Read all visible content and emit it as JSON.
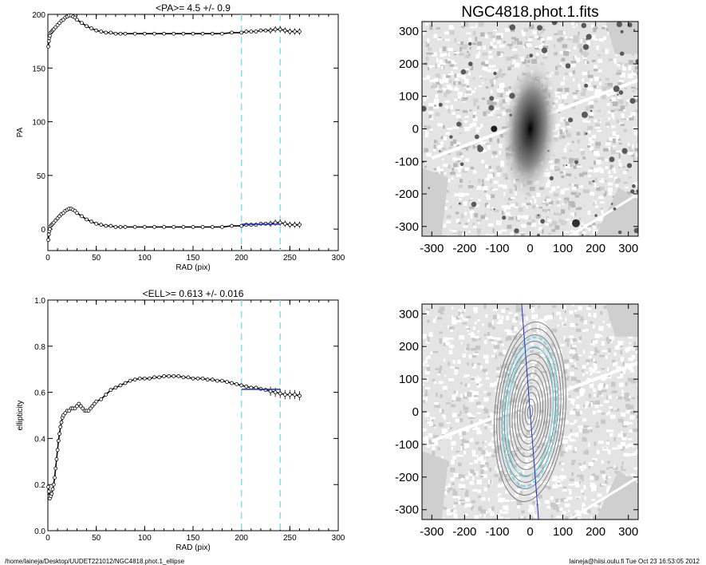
{
  "footer": {
    "path": "/home/laineja/Desktop/UUDET221012/NGC4818.phot.1_ellipse",
    "user_stamp": "laineja@hiisi.oulu.fi  Tue Oct 23 16:53:05 2012"
  },
  "colors": {
    "data_points": "#000000",
    "fit_line": "#2030c0",
    "dashed_limits": "#7fe0ea",
    "image_fill": "#d8d8d8",
    "contour": "#808080",
    "outer_contour": "#80d8e0"
  },
  "chart_data": [
    {
      "type": "scatter",
      "title": "<PA>=   4.5 +/-   0.9",
      "xlabel": "RAD (pix)",
      "ylabel": "PA",
      "xlim": [
        0,
        300
      ],
      "ylim": [
        -20,
        200
      ],
      "xticks": [
        0,
        50,
        100,
        150,
        200,
        250,
        300
      ],
      "yticks": [
        0,
        50,
        100,
        150,
        200
      ],
      "grid": false,
      "vlines": [
        200,
        240
      ],
      "fit_line": {
        "x": [
          200,
          240
        ],
        "y": [
          4.5,
          4.5
        ]
      },
      "series": [
        {
          "x": [
            0.5,
            1,
            1.5,
            2,
            3,
            4,
            5,
            6,
            8,
            10,
            12,
            14,
            16,
            18,
            20,
            22,
            24,
            26,
            28,
            30,
            35,
            40,
            45,
            50,
            55,
            60,
            65,
            70,
            75,
            80,
            90,
            100,
            110,
            120,
            130,
            140,
            150,
            160,
            170,
            180,
            190,
            200,
            205,
            210,
            215,
            220,
            225,
            230,
            235,
            240,
            245,
            250,
            255,
            260
          ],
          "y": [
            -10,
            -5,
            -2,
            0,
            3,
            4,
            5,
            6,
            8,
            10,
            12,
            14,
            15,
            17,
            18,
            19,
            19,
            18,
            17,
            15,
            12,
            9,
            7,
            5,
            4,
            3,
            3,
            2,
            2,
            2,
            2,
            2,
            2,
            2,
            2,
            2,
            2,
            2,
            2,
            2,
            3,
            3,
            4,
            4,
            4,
            5,
            5,
            5,
            6,
            6,
            5,
            4,
            4,
            4
          ]
        },
        {
          "x": [
            0.5,
            1,
            1.5,
            2,
            3,
            4,
            5,
            6,
            8,
            10,
            12,
            14,
            16,
            18,
            20,
            22,
            24,
            26,
            28,
            30,
            35,
            40,
            45,
            50,
            55,
            60,
            65,
            70,
            75,
            80,
            90,
            100,
            110,
            120,
            130,
            140,
            150,
            160,
            170,
            180,
            190,
            200,
            205,
            210,
            215,
            220,
            225,
            230,
            235,
            240,
            245,
            250,
            255,
            260
          ],
          "y": [
            170,
            175,
            178,
            180,
            183,
            184,
            185,
            186,
            188,
            190,
            192,
            194,
            195,
            197,
            198,
            199,
            199,
            198,
            197,
            195,
            192,
            189,
            187,
            185,
            184,
            183,
            183,
            182,
            182,
            182,
            182,
            182,
            182,
            182,
            182,
            182,
            182,
            182,
            182,
            182,
            183,
            183,
            184,
            184,
            184,
            185,
            185,
            185,
            186,
            186,
            185,
            184,
            184,
            184
          ]
        }
      ]
    },
    {
      "type": "scatter",
      "title": "<ELL>= 0.613 +/-  0.016",
      "xlabel": "RAD (pix)",
      "ylabel": "ellipticity",
      "xlim": [
        0,
        300
      ],
      "ylim": [
        0,
        1
      ],
      "xticks": [
        0,
        50,
        100,
        150,
        200,
        250,
        300
      ],
      "yticks": [
        0.0,
        0.2,
        0.4,
        0.6,
        0.8,
        1.0
      ],
      "grid": false,
      "vlines": [
        200,
        240
      ],
      "fit_line": {
        "x": [
          200,
          240
        ],
        "y": [
          0.613,
          0.613
        ]
      },
      "series": [
        {
          "x": [
            0.5,
            1,
            1.5,
            2,
            3,
            4,
            5,
            6,
            7,
            8,
            9,
            10,
            11,
            12,
            13,
            14,
            15,
            16,
            18,
            20,
            22,
            24,
            26,
            28,
            30,
            32,
            34,
            36,
            38,
            40,
            42,
            44,
            46,
            48,
            50,
            55,
            60,
            65,
            70,
            75,
            80,
            85,
            90,
            95,
            100,
            105,
            110,
            115,
            120,
            125,
            130,
            135,
            140,
            145,
            150,
            155,
            160,
            165,
            170,
            175,
            180,
            185,
            190,
            195,
            200,
            205,
            210,
            215,
            220,
            225,
            230,
            235,
            240,
            245,
            250,
            255,
            260
          ],
          "y": [
            0.19,
            0.17,
            0.15,
            0.14,
            0.15,
            0.16,
            0.18,
            0.2,
            0.23,
            0.27,
            0.31,
            0.35,
            0.39,
            0.42,
            0.45,
            0.47,
            0.49,
            0.5,
            0.51,
            0.52,
            0.52,
            0.53,
            0.53,
            0.53,
            0.54,
            0.55,
            0.54,
            0.53,
            0.52,
            0.52,
            0.52,
            0.53,
            0.54,
            0.55,
            0.56,
            0.57,
            0.59,
            0.61,
            0.62,
            0.63,
            0.64,
            0.65,
            0.655,
            0.66,
            0.66,
            0.66,
            0.665,
            0.665,
            0.67,
            0.67,
            0.67,
            0.67,
            0.665,
            0.665,
            0.66,
            0.66,
            0.66,
            0.655,
            0.655,
            0.65,
            0.65,
            0.645,
            0.64,
            0.635,
            0.63,
            0.625,
            0.62,
            0.62,
            0.615,
            0.61,
            0.605,
            0.6,
            0.595,
            0.59,
            0.59,
            0.59,
            0.585
          ]
        }
      ]
    },
    {
      "type": "heatmap",
      "title": "NGC4818.phot.1.fits",
      "xlim": [
        -330,
        330
      ],
      "ylim": [
        -330,
        330
      ],
      "xticks": [
        -300,
        -200,
        -100,
        0,
        100,
        200,
        300
      ],
      "yticks": [
        -300,
        -200,
        -100,
        0,
        100,
        200,
        300
      ]
    },
    {
      "type": "heatmap",
      "title": "",
      "xlim": [
        -330,
        330
      ],
      "ylim": [
        -330,
        330
      ],
      "xticks": [
        -300,
        -200,
        -100,
        0,
        100,
        200,
        300
      ],
      "yticks": [
        -300,
        -200,
        -100,
        0,
        100,
        200,
        300
      ],
      "pa_line_deg": 4.5
    }
  ]
}
